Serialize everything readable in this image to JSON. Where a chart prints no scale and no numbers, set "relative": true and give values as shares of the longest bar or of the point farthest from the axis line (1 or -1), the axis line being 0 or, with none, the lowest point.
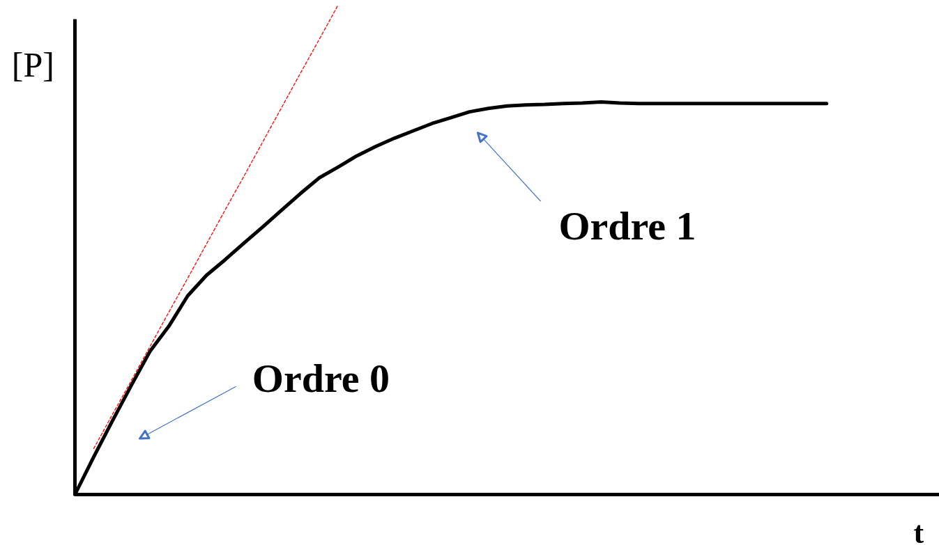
{
  "chart_data": {
    "type": "line",
    "relative": true,
    "line_style": "solid",
    "xlabel": "t",
    "ylabel": "[P]",
    "annotations": [
      "Ordre 0",
      "Ordre 1"
    ],
    "categories": [
      null,
      null,
      null,
      null,
      null,
      null,
      null,
      null,
      null,
      null,
      null,
      null,
      null,
      null,
      null,
      null,
      null,
      null,
      null,
      null,
      null,
      null,
      null,
      null,
      null,
      null,
      null,
      null,
      null,
      null,
      null,
      null,
      null,
      null,
      null,
      null,
      null,
      null,
      null,
      null,
      null,
      null,
      null,
      null,
      null,
      null
    ],
    "series": [
      {
        "color": "#000000",
        "values": [
          0,
          0.077,
          0.151,
          0.223,
          0.293,
          0.344,
          0.406,
          0.448,
          0.48,
          0.514,
          0.547,
          0.581,
          0.615,
          0.647,
          0.669,
          0.692,
          0.711,
          0.728,
          0.743,
          0.758,
          0.77,
          0.782,
          0.789,
          0.794,
          0.796,
          0.797,
          0.799,
          0.8,
          0.802,
          0.8,
          0.799,
          0.799,
          0.799,
          0.799,
          0.799,
          0.799,
          0.799,
          0.799,
          0.799,
          0.799,
          0.799,
          null,
          null,
          null,
          null,
          null
        ]
      },
      {
        "color": "#ff0000",
        "line_style": "dashed",
        "values": [
          null,
          0.094,
          0.164,
          0.233,
          0.303,
          0.373,
          0.442,
          0.512,
          0.582,
          0.651,
          0.721,
          0.791,
          0.861,
          0.93,
          1.0,
          null,
          null,
          null,
          null,
          null,
          null,
          null,
          null,
          null,
          null,
          null,
          null,
          null,
          null,
          null,
          null,
          null,
          null,
          null,
          null,
          null,
          null,
          null,
          null,
          null,
          null,
          null,
          null,
          null,
          null,
          null
        ]
      }
    ]
  }
}
